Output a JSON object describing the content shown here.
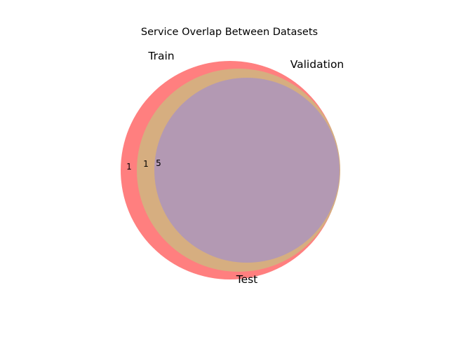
{
  "chart_data": {
    "type": "venn",
    "title": "Service Overlap Between Datasets",
    "sets": [
      {
        "name": "Train",
        "color": "#ff7f7f"
      },
      {
        "name": "Validation",
        "color": "#d6ae80"
      },
      {
        "name": "Test",
        "color": "#b399b3"
      }
    ],
    "region_labels": [
      {
        "region": "Train only",
        "value": "1"
      },
      {
        "region": "Train ∩ Validation only",
        "value": "1"
      },
      {
        "region": "Train ∩ Validation ∩ Test",
        "value": "5"
      }
    ]
  }
}
